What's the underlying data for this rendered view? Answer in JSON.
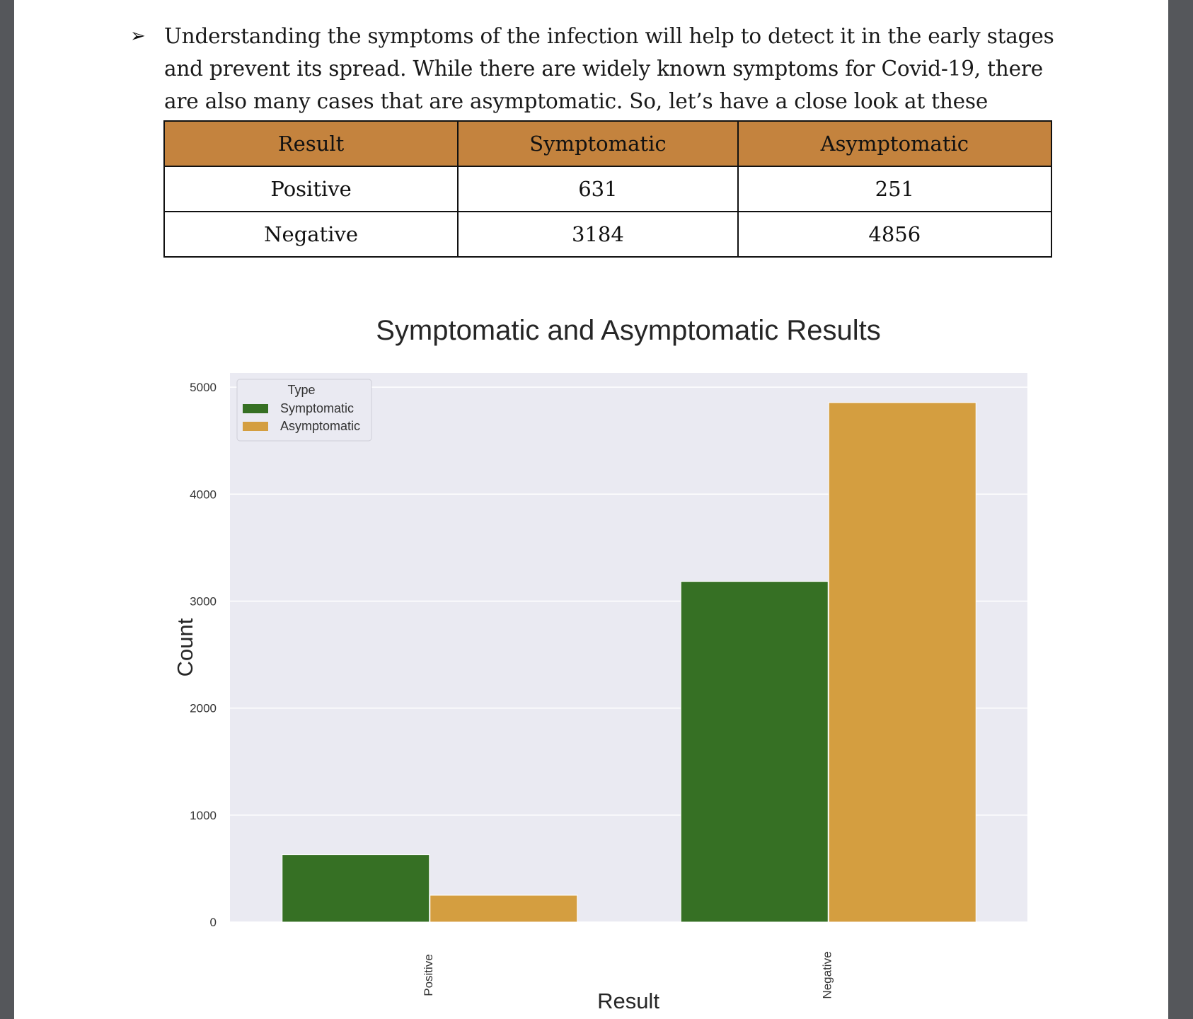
{
  "paragraph": {
    "bullet": "➢",
    "text": "Understanding the symptoms of the infection will help to detect it in the early stages and prevent its spread. While there are widely known symptoms for Covid-19, there are also many cases that are asymptomatic. So, let’s have a close look at these statistics"
  },
  "table": {
    "headers": [
      "Result",
      "Symptomatic",
      "Asymptomatic"
    ],
    "rows": [
      [
        "Positive",
        "631",
        "251"
      ],
      [
        "Negative",
        "3184",
        "4856"
      ]
    ],
    "header_color": "#c4833e"
  },
  "chart_data": {
    "type": "bar",
    "title": "Symptomatic and Asymptomatic Results",
    "xlabel": "Result",
    "ylabel": "Count",
    "categories": [
      "Positive",
      "Negative"
    ],
    "series": [
      {
        "name": "Symptomatic",
        "values": [
          631,
          3184
        ],
        "color": "#367024"
      },
      {
        "name": "Asymptomatic",
        "values": [
          251,
          4856
        ],
        "color": "#d49e40"
      }
    ],
    "ylim": [
      0,
      5000
    ],
    "yticks": [
      "0",
      "1000",
      "2000",
      "3000",
      "4000",
      "5000"
    ],
    "legend_title": "Type",
    "legend_position": "top-left",
    "grid": true,
    "background": "#eaeaf2"
  }
}
